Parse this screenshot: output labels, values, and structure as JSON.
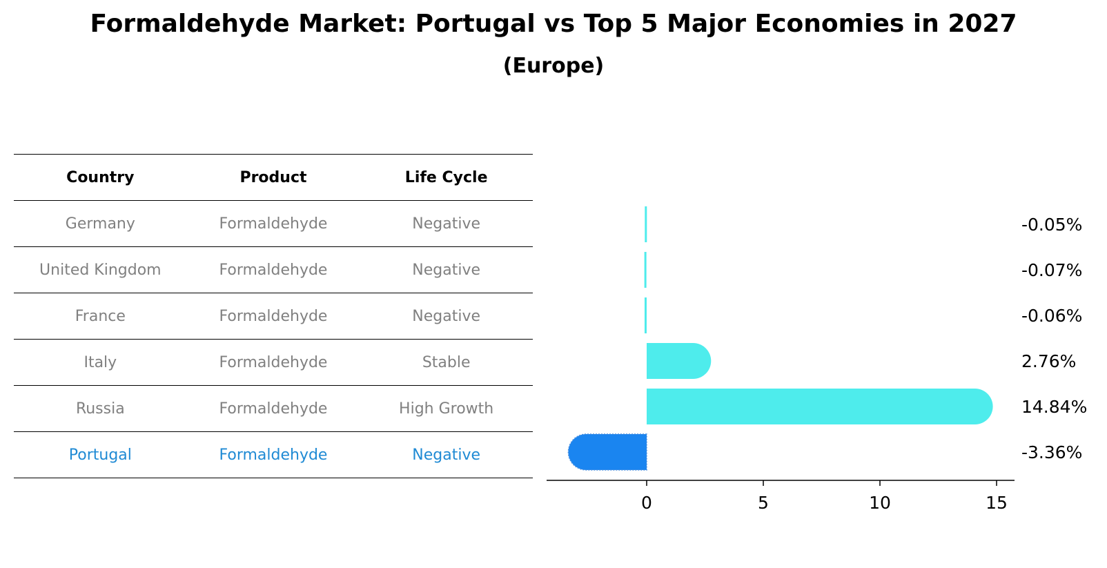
{
  "title": "Formaldehyde Market: Portugal vs Top 5 Major Economies in 2027",
  "subtitle": "(Europe)",
  "table": {
    "headers": [
      "Country",
      "Product",
      "Life Cycle"
    ],
    "rows": [
      {
        "country": "Germany",
        "product": "Formaldehyde",
        "life_cycle": "Negative",
        "highlight": false
      },
      {
        "country": "United Kingdom",
        "product": "Formaldehyde",
        "life_cycle": "Negative",
        "highlight": false
      },
      {
        "country": "France",
        "product": "Formaldehyde",
        "life_cycle": "Negative",
        "highlight": false
      },
      {
        "country": "Italy",
        "product": "Formaldehyde",
        "life_cycle": "Stable",
        "highlight": false
      },
      {
        "country": "Russia",
        "product": "Formaldehyde",
        "life_cycle": "High Growth",
        "highlight": false
      },
      {
        "country": "Portugal",
        "product": "Formaldehyde",
        "life_cycle": "Negative",
        "highlight": true
      }
    ]
  },
  "colors": {
    "bar_default": "#4eecec",
    "bar_highlight": "#1a85f0",
    "highlight_text": "#1f8ad4",
    "muted_text": "#808080"
  },
  "chart_data": {
    "type": "bar",
    "orientation": "horizontal",
    "categories": [
      "Germany",
      "United Kingdom",
      "France",
      "Italy",
      "Russia",
      "Portugal"
    ],
    "values": [
      -0.05,
      -0.07,
      -0.06,
      2.76,
      14.84,
      -3.36
    ],
    "value_labels": [
      "-0.05%",
      "-0.07%",
      "-0.06%",
      "2.76%",
      "14.84%",
      "-3.36%"
    ],
    "highlight": [
      false,
      false,
      false,
      false,
      false,
      true
    ],
    "xticks": [
      0,
      5,
      10,
      15
    ],
    "xlim": [
      -4.3,
      15.8
    ],
    "grid": false
  }
}
